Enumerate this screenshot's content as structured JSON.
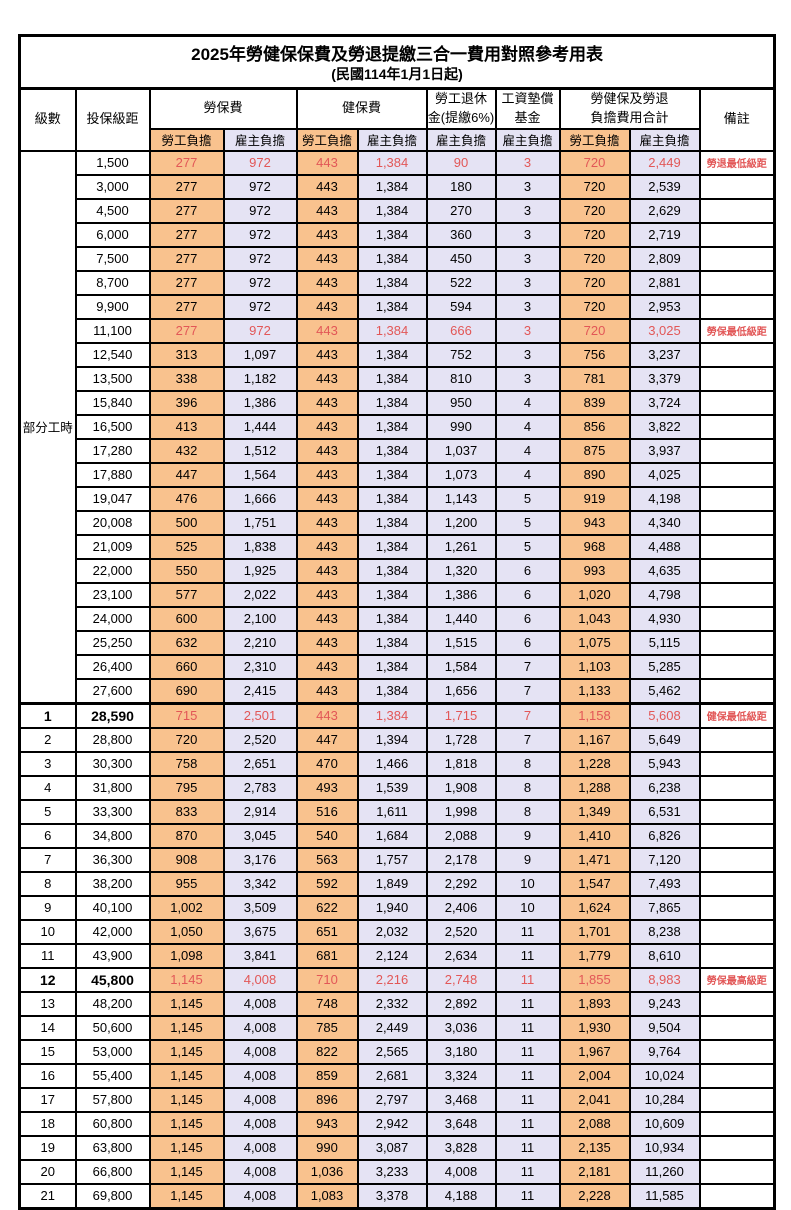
{
  "title": "2025年勞健保保費及勞退提繳三合一費用對照參考用表",
  "subtitle": "(民國114年1月1日起)",
  "colors": {
    "employee_col_bg": "#F9C28E",
    "employer_col_bg": "#E5E3F4",
    "highlight_red": "#E25757",
    "border": "#000000"
  },
  "header": {
    "level": "級數",
    "bracket": "投保級距",
    "labor_fee": "勞保費",
    "health_fee": "健保費",
    "pension": "勞工退休\n金(提繳6%)",
    "wage_fund": "工資墊償\n基金",
    "total": "勞健保及勞退\n負擔費用合計",
    "remark": "備註",
    "employee_share": "勞工負擔",
    "employer_share": "雇主負擔"
  },
  "table": {
    "parttime_label": "部分工時",
    "parttime_rowspan": 23,
    "value_col_pattern": [
      "emp",
      "er",
      "emp",
      "er",
      "er",
      "er",
      "emp",
      "er"
    ],
    "rows": [
      {
        "level": "",
        "bracket": "1,500",
        "v": [
          "277",
          "972",
          "443",
          "1,384",
          "90",
          "3",
          "720",
          "2,449"
        ],
        "remark": "勞退最低級距",
        "red": true
      },
      {
        "level": "",
        "bracket": "3,000",
        "v": [
          "277",
          "972",
          "443",
          "1,384",
          "180",
          "3",
          "720",
          "2,539"
        ],
        "remark": ""
      },
      {
        "level": "",
        "bracket": "4,500",
        "v": [
          "277",
          "972",
          "443",
          "1,384",
          "270",
          "3",
          "720",
          "2,629"
        ],
        "remark": ""
      },
      {
        "level": "",
        "bracket": "6,000",
        "v": [
          "277",
          "972",
          "443",
          "1,384",
          "360",
          "3",
          "720",
          "2,719"
        ],
        "remark": ""
      },
      {
        "level": "",
        "bracket": "7,500",
        "v": [
          "277",
          "972",
          "443",
          "1,384",
          "450",
          "3",
          "720",
          "2,809"
        ],
        "remark": ""
      },
      {
        "level": "",
        "bracket": "8,700",
        "v": [
          "277",
          "972",
          "443",
          "1,384",
          "522",
          "3",
          "720",
          "2,881"
        ],
        "remark": ""
      },
      {
        "level": "",
        "bracket": "9,900",
        "v": [
          "277",
          "972",
          "443",
          "1,384",
          "594",
          "3",
          "720",
          "2,953"
        ],
        "remark": ""
      },
      {
        "level": "",
        "bracket": "11,100",
        "v": [
          "277",
          "972",
          "443",
          "1,384",
          "666",
          "3",
          "720",
          "3,025"
        ],
        "remark": "勞保最低級距",
        "red": true
      },
      {
        "level": "",
        "bracket": "12,540",
        "v": [
          "313",
          "1,097",
          "443",
          "1,384",
          "752",
          "3",
          "756",
          "3,237"
        ],
        "remark": ""
      },
      {
        "level": "",
        "bracket": "13,500",
        "v": [
          "338",
          "1,182",
          "443",
          "1,384",
          "810",
          "3",
          "781",
          "3,379"
        ],
        "remark": ""
      },
      {
        "level": "",
        "bracket": "15,840",
        "v": [
          "396",
          "1,386",
          "443",
          "1,384",
          "950",
          "4",
          "839",
          "3,724"
        ],
        "remark": ""
      },
      {
        "level": "",
        "bracket": "16,500",
        "v": [
          "413",
          "1,444",
          "443",
          "1,384",
          "990",
          "4",
          "856",
          "3,822"
        ],
        "remark": ""
      },
      {
        "level": "",
        "bracket": "17,280",
        "v": [
          "432",
          "1,512",
          "443",
          "1,384",
          "1,037",
          "4",
          "875",
          "3,937"
        ],
        "remark": ""
      },
      {
        "level": "",
        "bracket": "17,880",
        "v": [
          "447",
          "1,564",
          "443",
          "1,384",
          "1,073",
          "4",
          "890",
          "4,025"
        ],
        "remark": ""
      },
      {
        "level": "",
        "bracket": "19,047",
        "v": [
          "476",
          "1,666",
          "443",
          "1,384",
          "1,143",
          "5",
          "919",
          "4,198"
        ],
        "remark": ""
      },
      {
        "level": "",
        "bracket": "20,008",
        "v": [
          "500",
          "1,751",
          "443",
          "1,384",
          "1,200",
          "5",
          "943",
          "4,340"
        ],
        "remark": ""
      },
      {
        "level": "",
        "bracket": "21,009",
        "v": [
          "525",
          "1,838",
          "443",
          "1,384",
          "1,261",
          "5",
          "968",
          "4,488"
        ],
        "remark": ""
      },
      {
        "level": "",
        "bracket": "22,000",
        "v": [
          "550",
          "1,925",
          "443",
          "1,384",
          "1,320",
          "6",
          "993",
          "4,635"
        ],
        "remark": ""
      },
      {
        "level": "",
        "bracket": "23,100",
        "v": [
          "577",
          "2,022",
          "443",
          "1,384",
          "1,386",
          "6",
          "1,020",
          "4,798"
        ],
        "remark": ""
      },
      {
        "level": "",
        "bracket": "24,000",
        "v": [
          "600",
          "2,100",
          "443",
          "1,384",
          "1,440",
          "6",
          "1,043",
          "4,930"
        ],
        "remark": ""
      },
      {
        "level": "",
        "bracket": "25,250",
        "v": [
          "632",
          "2,210",
          "443",
          "1,384",
          "1,515",
          "6",
          "1,075",
          "5,115"
        ],
        "remark": ""
      },
      {
        "level": "",
        "bracket": "26,400",
        "v": [
          "660",
          "2,310",
          "443",
          "1,384",
          "1,584",
          "7",
          "1,103",
          "5,285"
        ],
        "remark": ""
      },
      {
        "level": "",
        "bracket": "27,600",
        "v": [
          "690",
          "2,415",
          "443",
          "1,384",
          "1,656",
          "7",
          "1,133",
          "5,462"
        ],
        "remark": ""
      },
      {
        "level": "1",
        "bracket": "28,590",
        "v": [
          "715",
          "2,501",
          "443",
          "1,384",
          "1,715",
          "7",
          "1,158",
          "5,608"
        ],
        "remark": "健保最低級距",
        "red": true,
        "bold": true,
        "section": true
      },
      {
        "level": "2",
        "bracket": "28,800",
        "v": [
          "720",
          "2,520",
          "447",
          "1,394",
          "1,728",
          "7",
          "1,167",
          "5,649"
        ],
        "remark": ""
      },
      {
        "level": "3",
        "bracket": "30,300",
        "v": [
          "758",
          "2,651",
          "470",
          "1,466",
          "1,818",
          "8",
          "1,228",
          "5,943"
        ],
        "remark": ""
      },
      {
        "level": "4",
        "bracket": "31,800",
        "v": [
          "795",
          "2,783",
          "493",
          "1,539",
          "1,908",
          "8",
          "1,288",
          "6,238"
        ],
        "remark": ""
      },
      {
        "level": "5",
        "bracket": "33,300",
        "v": [
          "833",
          "2,914",
          "516",
          "1,611",
          "1,998",
          "8",
          "1,349",
          "6,531"
        ],
        "remark": ""
      },
      {
        "level": "6",
        "bracket": "34,800",
        "v": [
          "870",
          "3,045",
          "540",
          "1,684",
          "2,088",
          "9",
          "1,410",
          "6,826"
        ],
        "remark": ""
      },
      {
        "level": "7",
        "bracket": "36,300",
        "v": [
          "908",
          "3,176",
          "563",
          "1,757",
          "2,178",
          "9",
          "1,471",
          "7,120"
        ],
        "remark": ""
      },
      {
        "level": "8",
        "bracket": "38,200",
        "v": [
          "955",
          "3,342",
          "592",
          "1,849",
          "2,292",
          "10",
          "1,547",
          "7,493"
        ],
        "remark": ""
      },
      {
        "level": "9",
        "bracket": "40,100",
        "v": [
          "1,002",
          "3,509",
          "622",
          "1,940",
          "2,406",
          "10",
          "1,624",
          "7,865"
        ],
        "remark": ""
      },
      {
        "level": "10",
        "bracket": "42,000",
        "v": [
          "1,050",
          "3,675",
          "651",
          "2,032",
          "2,520",
          "11",
          "1,701",
          "8,238"
        ],
        "remark": ""
      },
      {
        "level": "11",
        "bracket": "43,900",
        "v": [
          "1,098",
          "3,841",
          "681",
          "2,124",
          "2,634",
          "11",
          "1,779",
          "8,610"
        ],
        "remark": ""
      },
      {
        "level": "12",
        "bracket": "45,800",
        "v": [
          "1,145",
          "4,008",
          "710",
          "2,216",
          "2,748",
          "11",
          "1,855",
          "8,983"
        ],
        "remark": "勞保最高級距",
        "red": true,
        "bold": true
      },
      {
        "level": "13",
        "bracket": "48,200",
        "v": [
          "1,145",
          "4,008",
          "748",
          "2,332",
          "2,892",
          "11",
          "1,893",
          "9,243"
        ],
        "remark": ""
      },
      {
        "level": "14",
        "bracket": "50,600",
        "v": [
          "1,145",
          "4,008",
          "785",
          "2,449",
          "3,036",
          "11",
          "1,930",
          "9,504"
        ],
        "remark": ""
      },
      {
        "level": "15",
        "bracket": "53,000",
        "v": [
          "1,145",
          "4,008",
          "822",
          "2,565",
          "3,180",
          "11",
          "1,967",
          "9,764"
        ],
        "remark": ""
      },
      {
        "level": "16",
        "bracket": "55,400",
        "v": [
          "1,145",
          "4,008",
          "859",
          "2,681",
          "3,324",
          "11",
          "2,004",
          "10,024"
        ],
        "remark": ""
      },
      {
        "level": "17",
        "bracket": "57,800",
        "v": [
          "1,145",
          "4,008",
          "896",
          "2,797",
          "3,468",
          "11",
          "2,041",
          "10,284"
        ],
        "remark": ""
      },
      {
        "level": "18",
        "bracket": "60,800",
        "v": [
          "1,145",
          "4,008",
          "943",
          "2,942",
          "3,648",
          "11",
          "2,088",
          "10,609"
        ],
        "remark": ""
      },
      {
        "level": "19",
        "bracket": "63,800",
        "v": [
          "1,145",
          "4,008",
          "990",
          "3,087",
          "3,828",
          "11",
          "2,135",
          "10,934"
        ],
        "remark": ""
      },
      {
        "level": "20",
        "bracket": "66,800",
        "v": [
          "1,145",
          "4,008",
          "1,036",
          "3,233",
          "4,008",
          "11",
          "2,181",
          "11,260"
        ],
        "remark": ""
      },
      {
        "level": "21",
        "bracket": "69,800",
        "v": [
          "1,145",
          "4,008",
          "1,083",
          "3,378",
          "4,188",
          "11",
          "2,228",
          "11,585"
        ],
        "remark": ""
      }
    ]
  }
}
